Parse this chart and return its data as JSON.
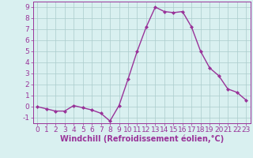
{
  "x": [
    0,
    1,
    2,
    3,
    4,
    5,
    6,
    7,
    8,
    9,
    10,
    11,
    12,
    13,
    14,
    15,
    16,
    17,
    18,
    19,
    20,
    21,
    22,
    23
  ],
  "y": [
    0.0,
    -0.2,
    -0.4,
    -0.4,
    0.1,
    -0.1,
    -0.3,
    -0.6,
    -1.3,
    0.1,
    2.5,
    5.0,
    7.2,
    9.0,
    8.6,
    8.5,
    8.6,
    7.2,
    5.0,
    3.5,
    2.8,
    1.6,
    1.3,
    0.6
  ],
  "line_color": "#993399",
  "marker": "D",
  "marker_size": 2,
  "line_width": 1.0,
  "bg_color": "#d9f0f0",
  "grid_color": "#aacccc",
  "xlabel": "Windchill (Refroidissement éolien,°C)",
  "xlim": [
    -0.5,
    23.5
  ],
  "ylim": [
    -1.5,
    9.5
  ],
  "yticks": [
    -1,
    0,
    1,
    2,
    3,
    4,
    5,
    6,
    7,
    8,
    9
  ],
  "xticks": [
    0,
    1,
    2,
    3,
    4,
    5,
    6,
    7,
    8,
    9,
    10,
    11,
    12,
    13,
    14,
    15,
    16,
    17,
    18,
    19,
    20,
    21,
    22,
    23
  ],
  "tick_color": "#993399",
  "label_color": "#993399",
  "spine_color": "#993399",
  "xlabel_fontsize": 7,
  "tick_fontsize": 6.5
}
